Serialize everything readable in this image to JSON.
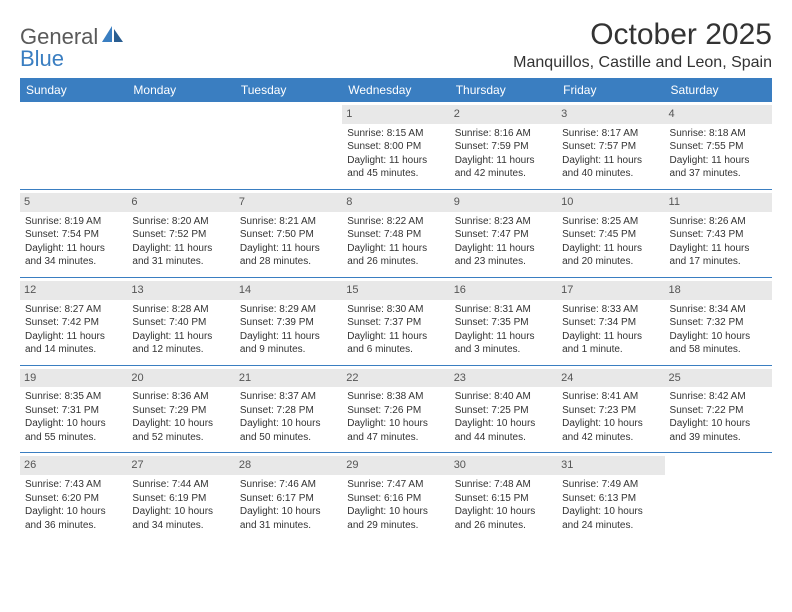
{
  "brand": {
    "name1": "General",
    "name2": "Blue"
  },
  "title": "October 2025",
  "location": "Manquillos, Castille and Leon, Spain",
  "colors": {
    "header_bg": "#3a7ec1",
    "header_fg": "#ffffff",
    "daynum_bg": "#e8e8e8",
    "divider": "#3a7ec1",
    "text": "#333333"
  },
  "days_of_week": [
    "Sunday",
    "Monday",
    "Tuesday",
    "Wednesday",
    "Thursday",
    "Friday",
    "Saturday"
  ],
  "weeks": [
    [
      {
        "n": "",
        "l1": "",
        "l2": "",
        "l3": "",
        "l4": ""
      },
      {
        "n": "",
        "l1": "",
        "l2": "",
        "l3": "",
        "l4": ""
      },
      {
        "n": "",
        "l1": "",
        "l2": "",
        "l3": "",
        "l4": ""
      },
      {
        "n": "1",
        "l1": "Sunrise: 8:15 AM",
        "l2": "Sunset: 8:00 PM",
        "l3": "Daylight: 11 hours",
        "l4": "and 45 minutes."
      },
      {
        "n": "2",
        "l1": "Sunrise: 8:16 AM",
        "l2": "Sunset: 7:59 PM",
        "l3": "Daylight: 11 hours",
        "l4": "and 42 minutes."
      },
      {
        "n": "3",
        "l1": "Sunrise: 8:17 AM",
        "l2": "Sunset: 7:57 PM",
        "l3": "Daylight: 11 hours",
        "l4": "and 40 minutes."
      },
      {
        "n": "4",
        "l1": "Sunrise: 8:18 AM",
        "l2": "Sunset: 7:55 PM",
        "l3": "Daylight: 11 hours",
        "l4": "and 37 minutes."
      }
    ],
    [
      {
        "n": "5",
        "l1": "Sunrise: 8:19 AM",
        "l2": "Sunset: 7:54 PM",
        "l3": "Daylight: 11 hours",
        "l4": "and 34 minutes."
      },
      {
        "n": "6",
        "l1": "Sunrise: 8:20 AM",
        "l2": "Sunset: 7:52 PM",
        "l3": "Daylight: 11 hours",
        "l4": "and 31 minutes."
      },
      {
        "n": "7",
        "l1": "Sunrise: 8:21 AM",
        "l2": "Sunset: 7:50 PM",
        "l3": "Daylight: 11 hours",
        "l4": "and 28 minutes."
      },
      {
        "n": "8",
        "l1": "Sunrise: 8:22 AM",
        "l2": "Sunset: 7:48 PM",
        "l3": "Daylight: 11 hours",
        "l4": "and 26 minutes."
      },
      {
        "n": "9",
        "l1": "Sunrise: 8:23 AM",
        "l2": "Sunset: 7:47 PM",
        "l3": "Daylight: 11 hours",
        "l4": "and 23 minutes."
      },
      {
        "n": "10",
        "l1": "Sunrise: 8:25 AM",
        "l2": "Sunset: 7:45 PM",
        "l3": "Daylight: 11 hours",
        "l4": "and 20 minutes."
      },
      {
        "n": "11",
        "l1": "Sunrise: 8:26 AM",
        "l2": "Sunset: 7:43 PM",
        "l3": "Daylight: 11 hours",
        "l4": "and 17 minutes."
      }
    ],
    [
      {
        "n": "12",
        "l1": "Sunrise: 8:27 AM",
        "l2": "Sunset: 7:42 PM",
        "l3": "Daylight: 11 hours",
        "l4": "and 14 minutes."
      },
      {
        "n": "13",
        "l1": "Sunrise: 8:28 AM",
        "l2": "Sunset: 7:40 PM",
        "l3": "Daylight: 11 hours",
        "l4": "and 12 minutes."
      },
      {
        "n": "14",
        "l1": "Sunrise: 8:29 AM",
        "l2": "Sunset: 7:39 PM",
        "l3": "Daylight: 11 hours",
        "l4": "and 9 minutes."
      },
      {
        "n": "15",
        "l1": "Sunrise: 8:30 AM",
        "l2": "Sunset: 7:37 PM",
        "l3": "Daylight: 11 hours",
        "l4": "and 6 minutes."
      },
      {
        "n": "16",
        "l1": "Sunrise: 8:31 AM",
        "l2": "Sunset: 7:35 PM",
        "l3": "Daylight: 11 hours",
        "l4": "and 3 minutes."
      },
      {
        "n": "17",
        "l1": "Sunrise: 8:33 AM",
        "l2": "Sunset: 7:34 PM",
        "l3": "Daylight: 11 hours",
        "l4": "and 1 minute."
      },
      {
        "n": "18",
        "l1": "Sunrise: 8:34 AM",
        "l2": "Sunset: 7:32 PM",
        "l3": "Daylight: 10 hours",
        "l4": "and 58 minutes."
      }
    ],
    [
      {
        "n": "19",
        "l1": "Sunrise: 8:35 AM",
        "l2": "Sunset: 7:31 PM",
        "l3": "Daylight: 10 hours",
        "l4": "and 55 minutes."
      },
      {
        "n": "20",
        "l1": "Sunrise: 8:36 AM",
        "l2": "Sunset: 7:29 PM",
        "l3": "Daylight: 10 hours",
        "l4": "and 52 minutes."
      },
      {
        "n": "21",
        "l1": "Sunrise: 8:37 AM",
        "l2": "Sunset: 7:28 PM",
        "l3": "Daylight: 10 hours",
        "l4": "and 50 minutes."
      },
      {
        "n": "22",
        "l1": "Sunrise: 8:38 AM",
        "l2": "Sunset: 7:26 PM",
        "l3": "Daylight: 10 hours",
        "l4": "and 47 minutes."
      },
      {
        "n": "23",
        "l1": "Sunrise: 8:40 AM",
        "l2": "Sunset: 7:25 PM",
        "l3": "Daylight: 10 hours",
        "l4": "and 44 minutes."
      },
      {
        "n": "24",
        "l1": "Sunrise: 8:41 AM",
        "l2": "Sunset: 7:23 PM",
        "l3": "Daylight: 10 hours",
        "l4": "and 42 minutes."
      },
      {
        "n": "25",
        "l1": "Sunrise: 8:42 AM",
        "l2": "Sunset: 7:22 PM",
        "l3": "Daylight: 10 hours",
        "l4": "and 39 minutes."
      }
    ],
    [
      {
        "n": "26",
        "l1": "Sunrise: 7:43 AM",
        "l2": "Sunset: 6:20 PM",
        "l3": "Daylight: 10 hours",
        "l4": "and 36 minutes."
      },
      {
        "n": "27",
        "l1": "Sunrise: 7:44 AM",
        "l2": "Sunset: 6:19 PM",
        "l3": "Daylight: 10 hours",
        "l4": "and 34 minutes."
      },
      {
        "n": "28",
        "l1": "Sunrise: 7:46 AM",
        "l2": "Sunset: 6:17 PM",
        "l3": "Daylight: 10 hours",
        "l4": "and 31 minutes."
      },
      {
        "n": "29",
        "l1": "Sunrise: 7:47 AM",
        "l2": "Sunset: 6:16 PM",
        "l3": "Daylight: 10 hours",
        "l4": "and 29 minutes."
      },
      {
        "n": "30",
        "l1": "Sunrise: 7:48 AM",
        "l2": "Sunset: 6:15 PM",
        "l3": "Daylight: 10 hours",
        "l4": "and 26 minutes."
      },
      {
        "n": "31",
        "l1": "Sunrise: 7:49 AM",
        "l2": "Sunset: 6:13 PM",
        "l3": "Daylight: 10 hours",
        "l4": "and 24 minutes."
      },
      {
        "n": "",
        "l1": "",
        "l2": "",
        "l3": "",
        "l4": ""
      }
    ]
  ]
}
